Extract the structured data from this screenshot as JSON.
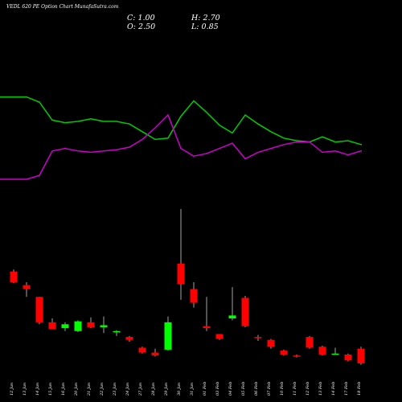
{
  "title": "VEDL 620  PE Option  Chart MunafaSutra.com",
  "ohlc": {
    "close": "C: 1.00",
    "high": "H: 2.70",
    "open": "O: 2.50",
    "low": "L: 0.85"
  },
  "colors": {
    "background": "#000000",
    "up": "#00ff00",
    "down": "#ff0000",
    "line_green": "#00cc00",
    "line_magenta": "#cc00cc",
    "text": "#ffffff"
  },
  "chart_data": {
    "type": "candlestick",
    "x": [
      "12 Jan",
      "13 Jan",
      "14 Jan",
      "15 Jan",
      "16 Jan",
      "20 Jan",
      "21 Jan",
      "22 Jan",
      "23 Jan",
      "24 Jan",
      "27 Jan",
      "28 Jan",
      "29 Jan",
      "30 Jan",
      "31 Jan",
      "01 Feb",
      "03 Feb",
      "04 Feb",
      "05 Feb",
      "06 Feb",
      "07 Feb",
      "10 Feb",
      "11 Feb",
      "12 Feb",
      "13 Feb",
      "14 Feb",
      "17 Feb",
      "18 Feb"
    ],
    "candles": [
      {
        "o": 10.4,
        "h": 10.6,
        "l": 9.2,
        "c": 9.3
      },
      {
        "o": 9.0,
        "h": 9.3,
        "l": 7.8,
        "c": 8.6
      },
      {
        "o": 7.8,
        "h": 7.8,
        "l": 5.0,
        "c": 5.2
      },
      {
        "o": 5.2,
        "h": 5.6,
        "l": 4.5,
        "c": 4.5
      },
      {
        "o": 4.6,
        "h": 5.2,
        "l": 4.3,
        "c": 5.0
      },
      {
        "o": 4.3,
        "h": 5.4,
        "l": 4.2,
        "c": 5.3
      },
      {
        "o": 5.2,
        "h": 5.7,
        "l": 4.6,
        "c": 4.7
      },
      {
        "o": 4.7,
        "h": 5.8,
        "l": 4.1,
        "c": 4.9
      },
      {
        "o": 4.2,
        "h": 4.4,
        "l": 3.8,
        "c": 4.3
      },
      {
        "o": 3.7,
        "h": 3.8,
        "l": 3.2,
        "c": 3.4
      },
      {
        "o": 2.6,
        "h": 2.7,
        "l": 2.0,
        "c": 2.1
      },
      {
        "o": 2.1,
        "h": 2.5,
        "l": 1.7,
        "c": 1.8
      },
      {
        "o": 2.4,
        "h": 5.8,
        "l": 2.3,
        "c": 5.2
      },
      {
        "o": 11.2,
        "h": 16.8,
        "l": 7.5,
        "c": 9.1
      },
      {
        "o": 8.6,
        "h": 9.3,
        "l": 6.7,
        "c": 7.2
      },
      {
        "o": 4.8,
        "h": 7.8,
        "l": 4.3,
        "c": 4.6
      },
      {
        "o": 4.0,
        "h": 4.0,
        "l": 3.4,
        "c": 3.5
      },
      {
        "o": 5.6,
        "h": 8.8,
        "l": 5.4,
        "c": 5.9
      },
      {
        "o": 7.7,
        "h": 7.9,
        "l": 4.7,
        "c": 4.8
      },
      {
        "o": 3.7,
        "h": 3.9,
        "l": 3.3,
        "c": 3.6
      },
      {
        "o": 3.4,
        "h": 3.5,
        "l": 2.5,
        "c": 2.7
      },
      {
        "o": 2.3,
        "h": 2.4,
        "l": 1.8,
        "c": 1.9
      },
      {
        "o": 1.8,
        "h": 1.9,
        "l": 1.6,
        "c": 1.7
      },
      {
        "o": 3.7,
        "h": 3.8,
        "l": 2.5,
        "c": 2.6
      },
      {
        "o": 2.7,
        "h": 2.8,
        "l": 1.8,
        "c": 1.9
      },
      {
        "o": 2.0,
        "h": 2.6,
        "l": 1.9,
        "c": 2.0
      },
      {
        "o": 1.9,
        "h": 2.0,
        "l": 1.2,
        "c": 1.3
      },
      {
        "o": 2.5,
        "h": 2.7,
        "l": 0.85,
        "c": 1.0
      }
    ],
    "lines": [
      {
        "color": "#00cc00",
        "values": [
          0.84,
          0.84,
          0.8,
          0.66,
          0.64,
          0.65,
          0.67,
          0.65,
          0.65,
          0.63,
          0.57,
          0.51,
          0.52,
          0.69,
          0.81,
          0.72,
          0.62,
          0.56,
          0.7,
          0.63,
          0.57,
          0.52,
          0.5,
          0.49,
          0.53,
          0.49,
          0.5,
          0.47
        ]
      },
      {
        "color": "#cc00cc",
        "values": [
          0.2,
          0.2,
          0.23,
          0.42,
          0.44,
          0.42,
          0.41,
          0.42,
          0.43,
          0.45,
          0.51,
          0.6,
          0.7,
          0.44,
          0.38,
          0.4,
          0.44,
          0.48,
          0.36,
          0.41,
          0.44,
          0.47,
          0.49,
          0.49,
          0.41,
          0.42,
          0.39,
          0.42
        ]
      }
    ]
  }
}
